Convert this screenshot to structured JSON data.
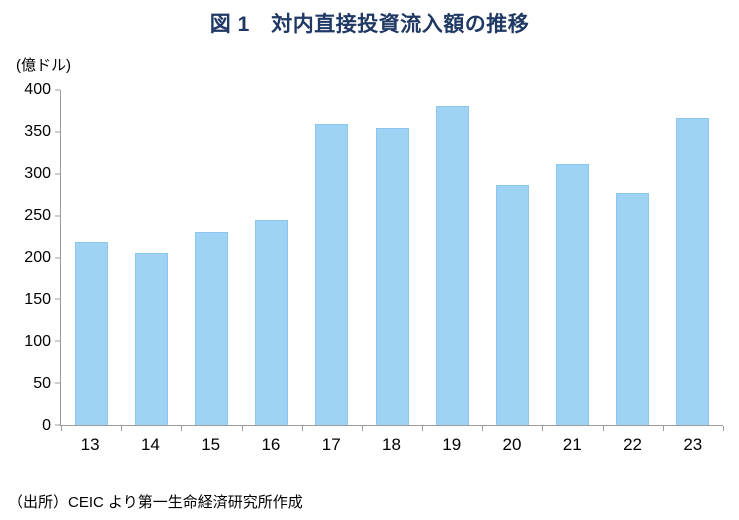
{
  "title": "図 1　対内直接投資流入額の推移",
  "unit_label": "(億ドル)",
  "source": "（出所）CEIC より第一生命経済研究所作成",
  "colors": {
    "title": "#1F3864",
    "bar_fill": "#9FD3F3",
    "axis_line": "#9b9b9b"
  },
  "chart_data": {
    "type": "bar",
    "title": "図 1　対内直接投資流入額の推移",
    "categories": [
      "13",
      "14",
      "15",
      "16",
      "17",
      "18",
      "19",
      "20",
      "21",
      "22",
      "23"
    ],
    "values": [
      218,
      205,
      230,
      245,
      360,
      355,
      381,
      286,
      312,
      277,
      366
    ],
    "xlabel": "",
    "ylabel": "(億ドル)",
    "ylim": [
      0,
      400
    ],
    "ytick_step": 50,
    "grid": false,
    "legend": false,
    "bar_color": "#9FD3F3"
  }
}
